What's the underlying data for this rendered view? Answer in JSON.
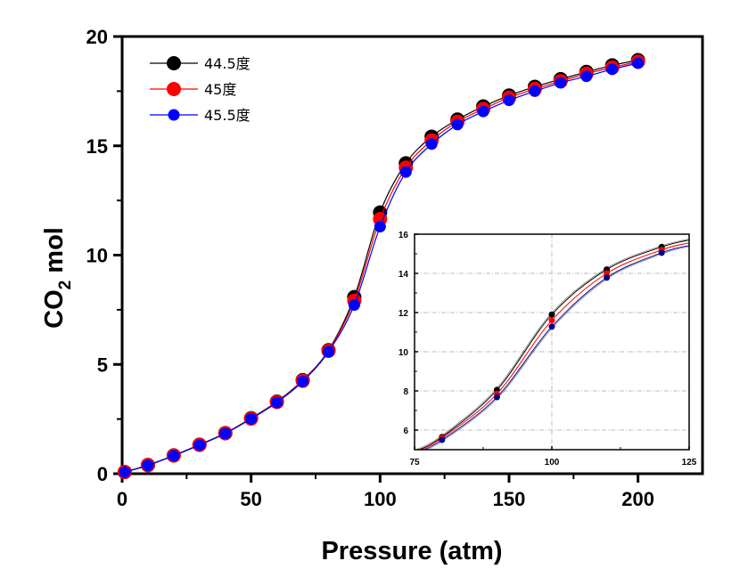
{
  "chart_data": [
    {
      "type": "line",
      "name": "main",
      "title": "",
      "xlabel": "Pressure (atm)",
      "ylabel_main": "CO",
      "ylabel_sub": "2",
      "ylabel_rest": " mol",
      "xlim": [
        0,
        225
      ],
      "ylim": [
        0,
        20
      ],
      "xticks": [
        0,
        50,
        100,
        150,
        200
      ],
      "xtick_labels": [
        "0",
        "50",
        "100",
        "150",
        "200"
      ],
      "yticks": [
        0,
        5,
        10,
        15,
        20
      ],
      "ytick_labels": [
        "0",
        "5",
        "10",
        "15",
        "20"
      ],
      "legend_position": "top-left",
      "grid": false,
      "x": [
        1,
        10,
        20,
        30,
        40,
        50,
        60,
        70,
        80,
        90,
        100,
        110,
        120,
        130,
        140,
        150,
        160,
        170,
        180,
        190,
        200
      ],
      "series": [
        {
          "name": "44.5度",
          "color": "#000000",
          "values": [
            0.08,
            0.4,
            0.84,
            1.33,
            1.86,
            2.54,
            3.3,
            4.28,
            5.65,
            8.08,
            11.95,
            14.2,
            15.42,
            16.2,
            16.8,
            17.3,
            17.7,
            18.05,
            18.38,
            18.68,
            18.92
          ]
        },
        {
          "name": "45度",
          "color": "#ff0000",
          "values": [
            0.08,
            0.39,
            0.83,
            1.32,
            1.85,
            2.52,
            3.28,
            4.25,
            5.62,
            7.92,
            11.65,
            14.0,
            15.25,
            16.1,
            16.68,
            17.2,
            17.6,
            17.96,
            18.3,
            18.58,
            18.85
          ]
        },
        {
          "name": "45.5度",
          "color": "#0000ff",
          "values": [
            0.07,
            0.38,
            0.82,
            1.31,
            1.84,
            2.51,
            3.26,
            4.22,
            5.58,
            7.72,
            11.3,
            13.8,
            15.08,
            15.97,
            16.57,
            17.08,
            17.5,
            17.88,
            18.18,
            18.5,
            18.78
          ]
        }
      ]
    },
    {
      "type": "line",
      "name": "inset",
      "xlim": [
        75,
        125
      ],
      "ylim": [
        5,
        16
      ],
      "xticks": [
        75,
        100,
        125
      ],
      "xtick_labels": [
        "75",
        "100",
        "125"
      ],
      "yticks": [
        6,
        8,
        10,
        12,
        14,
        16
      ],
      "ytick_labels": [
        "6",
        "8",
        "10",
        "12",
        "14",
        "16"
      ],
      "grid": true,
      "x": [
        75,
        80,
        90,
        100,
        110,
        120,
        125
      ],
      "markers_at": [
        80,
        90,
        100,
        110,
        120
      ],
      "series": [
        {
          "name": "44.5度",
          "color": "#000000",
          "values": [
            4.9,
            5.65,
            8.05,
            11.9,
            14.2,
            15.35,
            15.7
          ]
        },
        {
          "name": "45度",
          "color": "#ff0000",
          "values": [
            4.85,
            5.6,
            7.85,
            11.6,
            14.0,
            15.2,
            15.55
          ]
        },
        {
          "name": "45.5度",
          "color": "#000080",
          "values": [
            4.8,
            5.5,
            7.68,
            11.28,
            13.78,
            15.05,
            15.42
          ]
        }
      ]
    }
  ]
}
